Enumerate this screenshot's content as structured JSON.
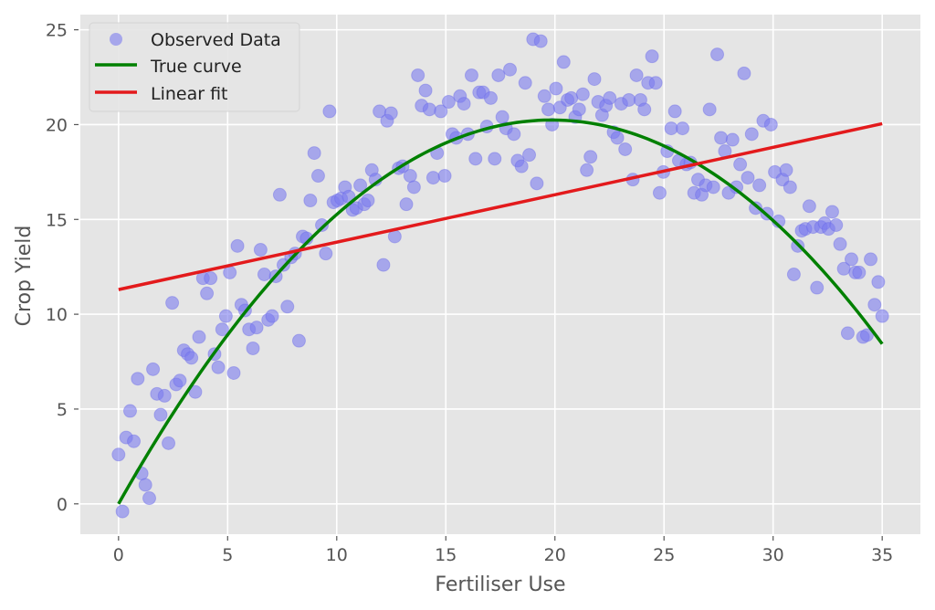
{
  "chart_data": {
    "type": "scatter",
    "title": "",
    "xlabel": "Fertiliser Use",
    "ylabel": "Crop Yield",
    "xlim": [
      -1.75,
      36.75
    ],
    "ylim": [
      -1.6,
      25.8
    ],
    "xticks": [
      "0",
      "5",
      "10",
      "15",
      "20",
      "25",
      "30",
      "35"
    ],
    "yticks": [
      "0",
      "5",
      "10",
      "15",
      "20",
      "25"
    ],
    "grid": true,
    "legend_position": "top-left",
    "colors": {
      "observed": "#7b7bee",
      "true_curve": "#008000",
      "linear_fit": "#e31a1c",
      "background": "#e5e5e5"
    },
    "legend": [
      "Observed Data",
      "True curve",
      "Linear fit"
    ],
    "series": [
      {
        "name": "Observed Data",
        "type": "scatter",
        "points": [
          [
            0.0,
            2.6
          ],
          [
            0.18,
            -0.4
          ],
          [
            0.35,
            3.5
          ],
          [
            0.53,
            4.9
          ],
          [
            0.7,
            3.3
          ],
          [
            0.88,
            6.6
          ],
          [
            1.06,
            1.6
          ],
          [
            1.23,
            1.0
          ],
          [
            1.41,
            0.3
          ],
          [
            1.58,
            7.1
          ],
          [
            1.76,
            5.8
          ],
          [
            1.93,
            4.7
          ],
          [
            2.11,
            5.7
          ],
          [
            2.29,
            3.2
          ],
          [
            2.46,
            10.6
          ],
          [
            2.64,
            6.3
          ],
          [
            2.81,
            6.5
          ],
          [
            2.99,
            8.1
          ],
          [
            3.17,
            7.9
          ],
          [
            3.34,
            7.7
          ],
          [
            3.52,
            5.9
          ],
          [
            3.69,
            8.8
          ],
          [
            3.87,
            11.9
          ],
          [
            4.05,
            11.1
          ],
          [
            4.22,
            11.9
          ],
          [
            4.4,
            7.9
          ],
          [
            4.57,
            7.2
          ],
          [
            4.75,
            9.2
          ],
          [
            4.92,
            9.9
          ],
          [
            5.1,
            12.2
          ],
          [
            5.28,
            6.9
          ],
          [
            5.45,
            13.6
          ],
          [
            5.63,
            10.5
          ],
          [
            5.8,
            10.2
          ],
          [
            5.98,
            9.2
          ],
          [
            6.16,
            8.2
          ],
          [
            6.33,
            9.3
          ],
          [
            6.51,
            13.4
          ],
          [
            6.68,
            12.1
          ],
          [
            6.86,
            9.7
          ],
          [
            7.04,
            9.9
          ],
          [
            7.21,
            12.0
          ],
          [
            7.39,
            16.3
          ],
          [
            7.56,
            12.6
          ],
          [
            7.74,
            10.4
          ],
          [
            7.91,
            13.0
          ],
          [
            8.09,
            13.2
          ],
          [
            8.27,
            8.6
          ],
          [
            8.44,
            14.1
          ],
          [
            8.62,
            14.0
          ],
          [
            8.79,
            16.0
          ],
          [
            8.97,
            18.5
          ],
          [
            9.15,
            17.3
          ],
          [
            9.32,
            14.7
          ],
          [
            9.5,
            13.2
          ],
          [
            9.67,
            20.7
          ],
          [
            9.85,
            15.9
          ],
          [
            10.03,
            16.0
          ],
          [
            10.2,
            16.1
          ],
          [
            10.38,
            16.7
          ],
          [
            10.55,
            16.2
          ],
          [
            10.73,
            15.5
          ],
          [
            10.9,
            15.6
          ],
          [
            11.08,
            16.8
          ],
          [
            11.26,
            15.8
          ],
          [
            11.43,
            16.0
          ],
          [
            11.61,
            17.6
          ],
          [
            11.78,
            17.1
          ],
          [
            11.96,
            20.7
          ],
          [
            12.14,
            12.6
          ],
          [
            12.31,
            20.2
          ],
          [
            12.49,
            20.6
          ],
          [
            12.66,
            14.1
          ],
          [
            12.84,
            17.7
          ],
          [
            13.02,
            17.8
          ],
          [
            13.19,
            15.8
          ],
          [
            13.37,
            17.3
          ],
          [
            13.54,
            16.7
          ],
          [
            13.72,
            22.6
          ],
          [
            13.89,
            21.0
          ],
          [
            14.07,
            21.8
          ],
          [
            14.25,
            20.8
          ],
          [
            14.42,
            17.2
          ],
          [
            14.6,
            18.5
          ],
          [
            14.77,
            20.7
          ],
          [
            14.95,
            17.3
          ],
          [
            15.13,
            21.2
          ],
          [
            15.3,
            19.5
          ],
          [
            15.48,
            19.3
          ],
          [
            15.65,
            21.5
          ],
          [
            15.83,
            21.1
          ],
          [
            16.01,
            19.5
          ],
          [
            16.18,
            22.6
          ],
          [
            16.36,
            18.2
          ],
          [
            16.53,
            21.7
          ],
          [
            16.71,
            21.7
          ],
          [
            16.88,
            19.9
          ],
          [
            17.06,
            21.4
          ],
          [
            17.24,
            18.2
          ],
          [
            17.41,
            22.6
          ],
          [
            17.59,
            20.4
          ],
          [
            17.76,
            19.8
          ],
          [
            17.94,
            22.9
          ],
          [
            18.12,
            19.5
          ],
          [
            18.29,
            18.1
          ],
          [
            18.47,
            17.8
          ],
          [
            18.64,
            22.2
          ],
          [
            18.82,
            18.4
          ],
          [
            19.0,
            24.5
          ],
          [
            19.17,
            16.9
          ],
          [
            19.35,
            24.4
          ],
          [
            19.52,
            21.5
          ],
          [
            19.7,
            20.8
          ],
          [
            19.87,
            20.0
          ],
          [
            20.05,
            21.9
          ],
          [
            20.23,
            20.9
          ],
          [
            20.4,
            23.3
          ],
          [
            20.58,
            21.3
          ],
          [
            20.75,
            21.4
          ],
          [
            20.93,
            20.4
          ],
          [
            21.11,
            20.8
          ],
          [
            21.28,
            21.6
          ],
          [
            21.46,
            17.6
          ],
          [
            21.63,
            18.3
          ],
          [
            21.81,
            22.4
          ],
          [
            21.98,
            21.2
          ],
          [
            22.16,
            20.5
          ],
          [
            22.34,
            21.0
          ],
          [
            22.51,
            21.4
          ],
          [
            22.69,
            19.6
          ],
          [
            22.86,
            19.3
          ],
          [
            23.04,
            21.1
          ],
          [
            23.22,
            18.7
          ],
          [
            23.39,
            21.3
          ],
          [
            23.57,
            17.1
          ],
          [
            23.74,
            22.6
          ],
          [
            23.92,
            21.3
          ],
          [
            24.1,
            20.8
          ],
          [
            24.27,
            22.2
          ],
          [
            24.45,
            23.6
          ],
          [
            24.62,
            22.2
          ],
          [
            24.8,
            16.4
          ],
          [
            24.97,
            17.5
          ],
          [
            25.15,
            18.6
          ],
          [
            25.33,
            19.8
          ],
          [
            25.5,
            20.7
          ],
          [
            25.68,
            18.1
          ],
          [
            25.85,
            19.8
          ],
          [
            26.03,
            17.9
          ],
          [
            26.21,
            18.0
          ],
          [
            26.38,
            16.4
          ],
          [
            26.56,
            17.1
          ],
          [
            26.73,
            16.3
          ],
          [
            26.91,
            16.8
          ],
          [
            27.09,
            20.8
          ],
          [
            27.26,
            16.7
          ],
          [
            27.44,
            23.7
          ],
          [
            27.61,
            19.3
          ],
          [
            27.79,
            18.6
          ],
          [
            27.96,
            16.4
          ],
          [
            28.14,
            19.2
          ],
          [
            28.32,
            16.7
          ],
          [
            28.49,
            17.9
          ],
          [
            28.67,
            22.7
          ],
          [
            28.84,
            17.2
          ],
          [
            29.02,
            19.5
          ],
          [
            29.2,
            15.6
          ],
          [
            29.37,
            16.8
          ],
          [
            29.55,
            20.2
          ],
          [
            29.72,
            15.3
          ],
          [
            29.9,
            20.0
          ],
          [
            30.08,
            17.5
          ],
          [
            30.25,
            14.9
          ],
          [
            30.43,
            17.1
          ],
          [
            30.6,
            17.6
          ],
          [
            30.78,
            16.7
          ],
          [
            30.95,
            12.1
          ],
          [
            31.13,
            13.6
          ],
          [
            31.31,
            14.4
          ],
          [
            31.48,
            14.5
          ],
          [
            31.66,
            15.7
          ],
          [
            31.83,
            14.6
          ],
          [
            32.01,
            11.4
          ],
          [
            32.19,
            14.6
          ],
          [
            32.36,
            14.8
          ],
          [
            32.54,
            14.5
          ],
          [
            32.71,
            15.4
          ],
          [
            32.89,
            14.7
          ],
          [
            33.07,
            13.7
          ],
          [
            33.24,
            12.4
          ],
          [
            33.42,
            9.0
          ],
          [
            33.59,
            12.9
          ],
          [
            33.77,
            12.2
          ],
          [
            33.94,
            12.2
          ],
          [
            34.12,
            8.8
          ],
          [
            34.3,
            8.9
          ],
          [
            34.47,
            12.9
          ],
          [
            34.65,
            10.5
          ],
          [
            34.82,
            11.7
          ],
          [
            35.0,
            9.9
          ]
        ]
      },
      {
        "name": "True curve",
        "type": "line",
        "model": "quadratic",
        "coefficients": {
          "a": -0.0514,
          "b": 2.04,
          "c": 0.0
        },
        "x_range": [
          0,
          35
        ]
      },
      {
        "name": "Linear fit",
        "type": "line",
        "model": "linear",
        "coefficients": {
          "slope": 0.25,
          "intercept": 11.3
        },
        "x_range": [
          0,
          35
        ]
      }
    ]
  }
}
